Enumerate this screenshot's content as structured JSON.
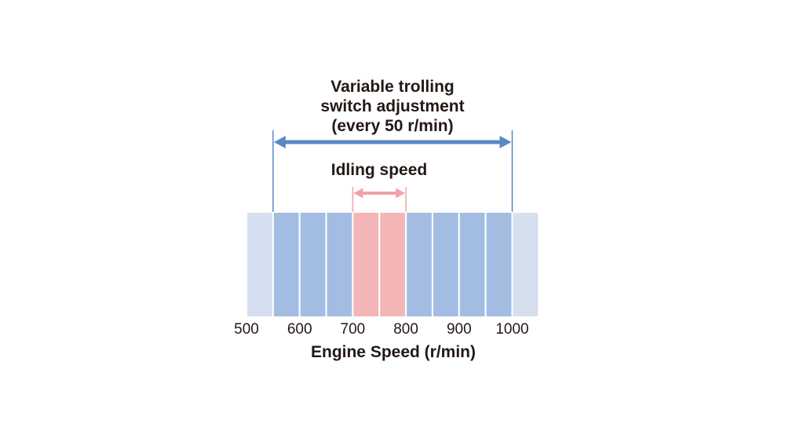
{
  "title_lines": [
    "Variable trolling",
    "switch adjustment",
    "(every 50 r/min)"
  ],
  "idling_label": "Idling speed",
  "xlabel": "Engine Speed (r/min)",
  "ticks": [
    {
      "value": 500,
      "label": "500"
    },
    {
      "value": 600,
      "label": "600"
    },
    {
      "value": 700,
      "label": "700"
    },
    {
      "value": 800,
      "label": "800"
    },
    {
      "value": 900,
      "label": "900"
    },
    {
      "value": 1000,
      "label": "1000"
    }
  ],
  "axis_range": [
    500,
    1050
  ],
  "step": 50,
  "adjustment_range": [
    550,
    1000
  ],
  "idling_range": [
    700,
    800
  ],
  "colors": {
    "outer_band": "#d6dfef",
    "adjust_band": "#a3bde2",
    "idle_band": "#f4b5b7",
    "adjust_arrow": "#5b87c7",
    "idle_arrow": "#f0a3a6",
    "text": "#231815"
  }
}
